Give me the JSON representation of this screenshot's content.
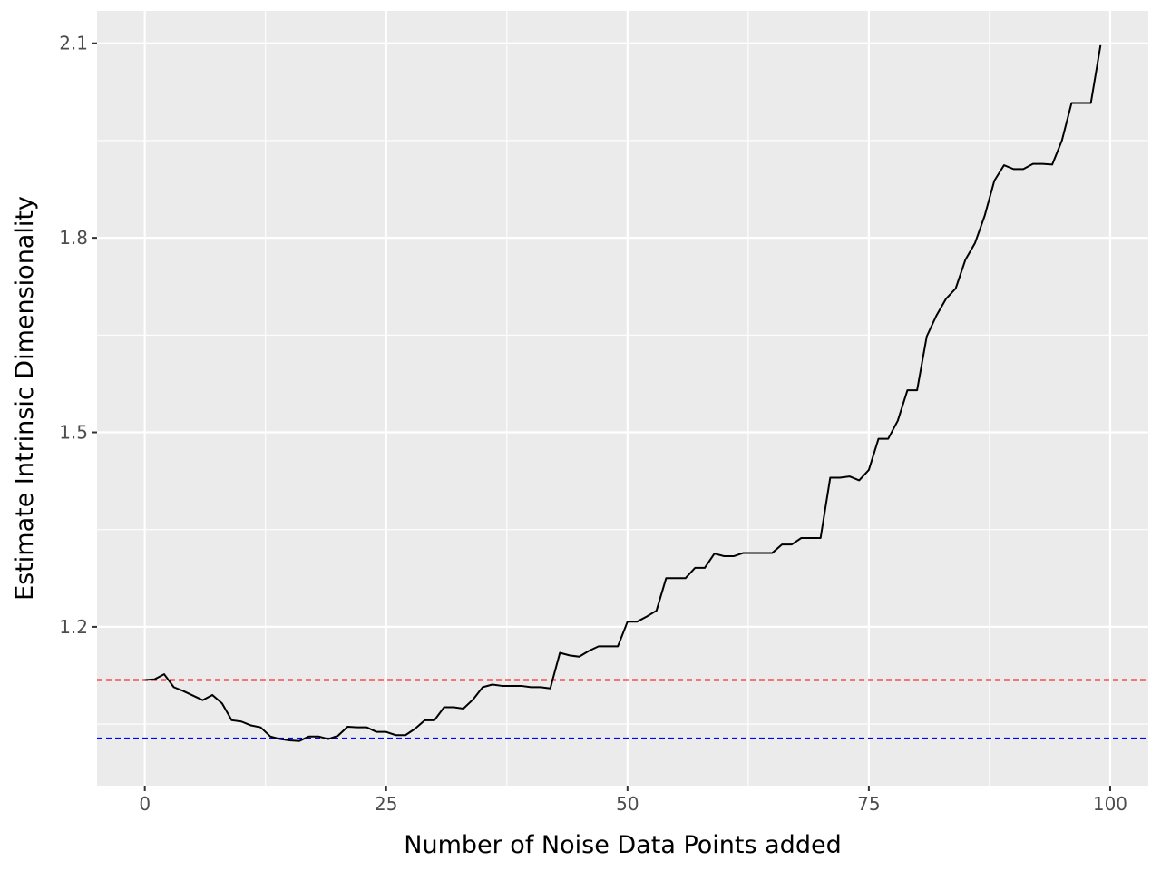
{
  "chart_data": {
    "type": "line",
    "xlabel": "Number of Noise Data Points added",
    "ylabel": "Estimate Intrinsic Dimensionality",
    "xlim": [
      -4.95,
      103.95
    ],
    "ylim": [
      0.955,
      2.15
    ],
    "x_ticks": [
      0,
      25,
      50,
      75,
      100
    ],
    "x_tick_labels": [
      "0",
      "25",
      "50",
      "75",
      "100"
    ],
    "y_ticks": [
      1.2,
      1.5,
      1.8,
      2.1
    ],
    "y_tick_labels": [
      "1.2",
      "1.5",
      "1.8",
      "2.1"
    ],
    "y_minor_grid": [
      1.05,
      1.35,
      1.65,
      1.95
    ],
    "x_minor_grid": [
      12.5,
      37.5,
      62.5,
      87.5
    ],
    "grid": true,
    "background": "#ebebeb",
    "series": [
      {
        "color": "#000000",
        "x": [
          0,
          1,
          2,
          3,
          4,
          5,
          6,
          7,
          8,
          9,
          10,
          11,
          12,
          13,
          14,
          15,
          16,
          17,
          18,
          19,
          20,
          21,
          22,
          23,
          24,
          25,
          26,
          27,
          28,
          29,
          30,
          31,
          32,
          33,
          34,
          35,
          36,
          37,
          38,
          39,
          40,
          41,
          42,
          43,
          44,
          45,
          46,
          47,
          48,
          49,
          50,
          51,
          52,
          53,
          54,
          55,
          56,
          57,
          58,
          59,
          60,
          61,
          62,
          63,
          64,
          65,
          66,
          67,
          68,
          69,
          70,
          71,
          72,
          73,
          74,
          75,
          76,
          77,
          78,
          79,
          80,
          81,
          82,
          83,
          84,
          85,
          86,
          87,
          88,
          89,
          90,
          91,
          92,
          93,
          94,
          95,
          96,
          97,
          98,
          99
        ],
        "values": [
          1.118,
          1.119,
          1.127,
          1.107,
          1.101,
          1.094,
          1.087,
          1.095,
          1.082,
          1.056,
          1.054,
          1.048,
          1.045,
          1.031,
          1.027,
          1.025,
          1.024,
          1.031,
          1.031,
          1.027,
          1.032,
          1.046,
          1.045,
          1.045,
          1.038,
          1.038,
          1.033,
          1.033,
          1.043,
          1.056,
          1.056,
          1.076,
          1.076,
          1.074,
          1.088,
          1.107,
          1.111,
          1.109,
          1.109,
          1.109,
          1.107,
          1.107,
          1.105,
          1.16,
          1.156,
          1.154,
          1.163,
          1.17,
          1.17,
          1.17,
          1.208,
          1.208,
          1.216,
          1.225,
          1.275,
          1.275,
          1.275,
          1.291,
          1.291,
          1.313,
          1.309,
          1.309,
          1.314,
          1.314,
          1.314,
          1.314,
          1.327,
          1.327,
          1.337,
          1.337,
          1.337,
          1.43,
          1.43,
          1.432,
          1.426,
          1.442,
          1.49,
          1.49,
          1.518,
          1.565,
          1.565,
          1.648,
          1.68,
          1.706,
          1.722,
          1.766,
          1.792,
          1.834,
          1.888,
          1.912,
          1.906,
          1.906,
          1.914,
          1.914,
          1.913,
          1.95,
          2.008,
          2.008,
          2.008,
          2.097
        ]
      }
    ],
    "reference_lines": [
      {
        "orientation": "horizontal",
        "y": 1.118,
        "color": "#ff0000",
        "style": "dashed"
      },
      {
        "orientation": "horizontal",
        "y": 1.028,
        "color": "#0000ff",
        "style": "dashed"
      }
    ]
  }
}
